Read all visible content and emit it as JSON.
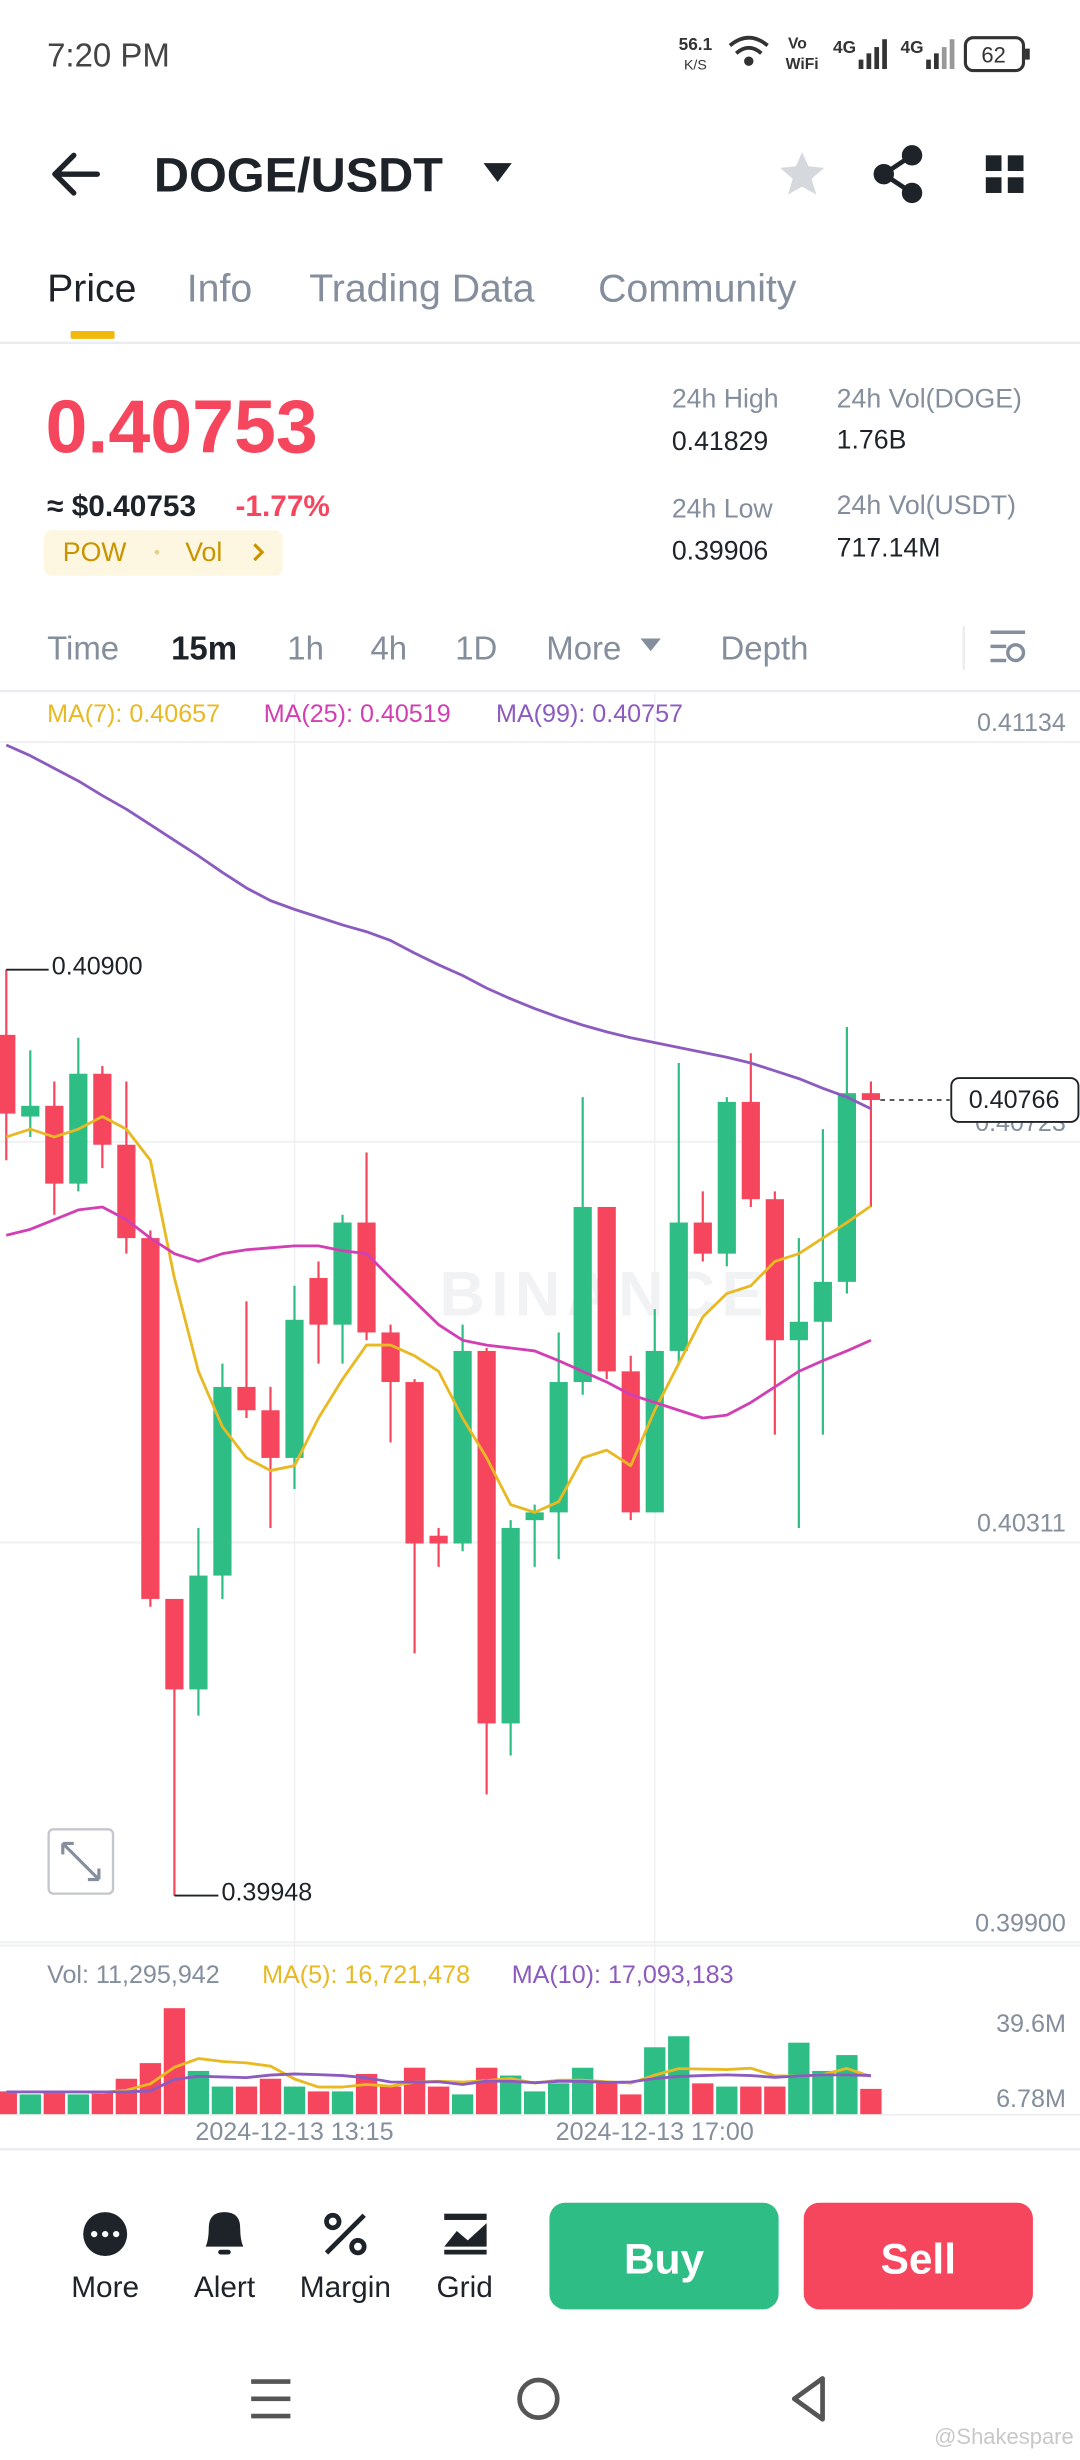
{
  "status_bar": {
    "time": "7:20 PM",
    "net_speed": "56.1",
    "net_unit": "K/S",
    "vo": "Vo",
    "wifi": "WiFi",
    "network_1": "4G",
    "network_2": "4G",
    "battery": "62"
  },
  "header": {
    "pair": "DOGE/USDT"
  },
  "tabs": [
    "Price",
    "Info",
    "Trading Data",
    "Community"
  ],
  "price": {
    "last": "0.40753",
    "usd": "≈ $0.40753",
    "change": "-1.77%",
    "tags": [
      "POW",
      "Vol"
    ]
  },
  "stats": [
    {
      "label": "24h High",
      "value": "0.41829"
    },
    {
      "label": "24h Vol(DOGE)",
      "value": "1.76B"
    },
    {
      "label": "24h Low",
      "value": "0.39906"
    },
    {
      "label": "24h Vol(USDT)",
      "value": "717.14M"
    }
  ],
  "intervals": [
    "Time",
    "15m",
    "1h",
    "4h",
    "1D",
    "More",
    "Depth"
  ],
  "watermark": "BINANCE",
  "chart_data": [
    {
      "type": "candlestick",
      "up_color": "#2ebd85",
      "down_color": "#f6465d",
      "grid": true,
      "open": [
        0.40833,
        0.40749,
        0.4076,
        0.4068,
        0.40793,
        0.4072,
        0.40624,
        0.40253,
        0.4016,
        0.40277,
        0.40471,
        0.40447,
        0.40398,
        0.40583,
        0.40535,
        0.4064,
        0.40527,
        0.40476,
        0.40318,
        0.4031,
        0.40508,
        0.40125,
        0.40334,
        0.40342,
        0.40476,
        0.40656,
        0.40487,
        0.40342,
        0.40508,
        0.4064,
        0.40608,
        0.40764,
        0.40664,
        0.40519,
        0.40538,
        0.40579,
        0.40773
      ],
      "high": [
        0.409,
        0.40817,
        0.40785,
        0.4083,
        0.40801,
        0.40785,
        0.40632,
        0.40253,
        0.40326,
        0.40495,
        0.40559,
        0.40471,
        0.40575,
        0.406,
        0.40648,
        0.40712,
        0.40535,
        0.40479,
        0.40326,
        0.40535,
        0.40511,
        0.40334,
        0.4035,
        0.40527,
        0.40769,
        0.40656,
        0.40503,
        0.40551,
        0.40804,
        0.40672,
        0.40769,
        0.40814,
        0.40672,
        0.40624,
        0.40736,
        0.40841,
        0.40785
      ],
      "low": [
        0.40704,
        0.40728,
        0.40648,
        0.40672,
        0.40696,
        0.40608,
        0.40245,
        0.39948,
        0.40133,
        0.40253,
        0.40439,
        0.40326,
        0.40366,
        0.40495,
        0.40495,
        0.40519,
        0.40414,
        0.40197,
        0.40286,
        0.40302,
        0.40052,
        0.40092,
        0.40286,
        0.40294,
        0.40463,
        0.40479,
        0.40334,
        0.40342,
        0.40495,
        0.406,
        0.40595,
        0.40656,
        0.40422,
        0.40326,
        0.40422,
        0.40567,
        0.40656
      ],
      "close": [
        0.40752,
        0.4076,
        0.4068,
        0.40793,
        0.4072,
        0.40624,
        0.40253,
        0.4016,
        0.40277,
        0.40471,
        0.40447,
        0.40398,
        0.4054,
        0.40535,
        0.4064,
        0.40527,
        0.40476,
        0.4031,
        0.4031,
        0.40508,
        0.40125,
        0.40326,
        0.40342,
        0.40476,
        0.40656,
        0.40487,
        0.40342,
        0.40508,
        0.4064,
        0.40608,
        0.40764,
        0.40664,
        0.40519,
        0.40538,
        0.40579,
        0.40773,
        0.40766
      ],
      "series": [
        {
          "name": "MA(7): 0.40657",
          "color": "#e8b923",
          "values": [
            0.40728,
            0.40736,
            0.40728,
            0.40736,
            0.40749,
            0.40736,
            0.40704,
            0.40583,
            0.40487,
            0.4043,
            0.40398,
            0.40385,
            0.4039,
            0.40439,
            0.40479,
            0.40514,
            0.40514,
            0.40503,
            0.40487,
            0.40439,
            0.40398,
            0.4035,
            0.40342,
            0.40353,
            0.40398,
            0.40406,
            0.4039,
            0.40447,
            0.40495,
            0.40543,
            0.40567,
            0.40575,
            0.406,
            0.40608,
            0.40624,
            0.4064,
            0.40657
          ]
        },
        {
          "name": "MA(25): 0.40519",
          "color": "#d23fb3",
          "values": [
            0.40627,
            0.40633,
            0.40643,
            0.40653,
            0.40656,
            0.40643,
            0.40624,
            0.40608,
            0.406,
            0.40608,
            0.40612,
            0.40614,
            0.40616,
            0.40616,
            0.40611,
            0.40608,
            0.40583,
            0.40559,
            0.40535,
            0.40519,
            0.40514,
            0.40511,
            0.40508,
            0.40498,
            0.40487,
            0.40476,
            0.40463,
            0.40455,
            0.40447,
            0.40439,
            0.40442,
            0.40455,
            0.40471,
            0.40487,
            0.40498,
            0.40508,
            0.40519
          ]
        },
        {
          "name": "MA(99): 0.40757",
          "color": "#8c5bbf",
          "values": [
            0.41131,
            0.4112,
            0.41107,
            0.41094,
            0.41079,
            0.41065,
            0.41049,
            0.41033,
            0.41017,
            0.41,
            0.40984,
            0.40971,
            0.40962,
            0.40954,
            0.40946,
            0.40939,
            0.4093,
            0.40917,
            0.40905,
            0.40894,
            0.40881,
            0.4087,
            0.4086,
            0.40851,
            0.40843,
            0.40836,
            0.4083,
            0.40825,
            0.4082,
            0.40815,
            0.4081,
            0.40804,
            0.40796,
            0.40788,
            0.40778,
            0.40769,
            0.40757
          ]
        }
      ],
      "ylim": [
        0.399,
        0.41184
      ],
      "yticks": [
        0.41134,
        0.40723,
        0.40311,
        {
          "value": 0.399,
          "label": "0.39900"
        }
      ],
      "high_label": {
        "value": 0.409,
        "label": "0.40900"
      },
      "low_label": {
        "value": 0.39948,
        "label": "0.39948"
      },
      "last_price": 0.40766
    },
    {
      "type": "bar",
      "title": "Vol: 11,295,942",
      "categories": [
        null,
        null,
        null,
        null,
        null,
        null,
        null,
        null,
        null,
        null,
        null,
        null,
        "2024-12-13 13:15",
        null,
        null,
        null,
        null,
        null,
        null,
        null,
        null,
        null,
        null,
        null,
        null,
        null,
        null,
        "2024-12-13 17:00",
        null,
        null,
        null,
        null,
        null,
        null,
        null,
        null,
        null
      ],
      "values": [
        10200000,
        8900000,
        10200000,
        8900000,
        10200000,
        15700000,
        22500000,
        46400000,
        19100000,
        12300000,
        12300000,
        15700000,
        12300000,
        10200000,
        10200000,
        17800000,
        12300000,
        20500000,
        12300000,
        8900000,
        20500000,
        17100000,
        10200000,
        13700000,
        20500000,
        13700000,
        8900000,
        29400000,
        34200000,
        13700000,
        12300000,
        12300000,
        12300000,
        31400000,
        19100000,
        26000000,
        11295942
      ],
      "series": [
        {
          "name": "MA(5): 16,721,478",
          "color": "#e8b923",
          "values": [
            10000000,
            10000000,
            10000000,
            10000000,
            9700000,
            10700000,
            13500000,
            20700000,
            24500000,
            23200000,
            22600000,
            21200000,
            15600000,
            12100000,
            12100000,
            13200000,
            12500000,
            14200000,
            14600000,
            14300000,
            14900000,
            15800000,
            13800000,
            15100000,
            15100000,
            14400000,
            13800000,
            17300000,
            20100000,
            19900000,
            19700000,
            20300000,
            17000000,
            16800000,
            17500000,
            20200000,
            16721478
          ]
        },
        {
          "name": "MA(10): 17,093,183",
          "color": "#8c5bbf",
          "values": [
            10000000,
            10000000,
            10000000,
            10000000,
            10000000,
            10000000,
            10400000,
            15400000,
            16800000,
            16500000,
            16200000,
            17300000,
            17800000,
            17500000,
            17100000,
            16100000,
            14300000,
            14200000,
            14400000,
            13200000,
            14700000,
            14600000,
            14000000,
            14600000,
            14600000,
            14100000,
            14300000,
            15800000,
            16700000,
            17100000,
            17400000,
            17100000,
            16300000,
            16900000,
            17400000,
            17400000,
            17093183
          ]
        }
      ],
      "ylim": [
        0,
        70300000
      ],
      "yticks": [
        {
          "value": 39600000,
          "label": "39.6M"
        },
        {
          "value": 6780000,
          "label": "6.78M"
        }
      ]
    }
  ],
  "toolbar": [
    "More",
    "Alert",
    "Margin",
    "Grid"
  ],
  "actions": {
    "buy": "Buy",
    "sell": "Sell"
  },
  "credit": "@Shakespare"
}
